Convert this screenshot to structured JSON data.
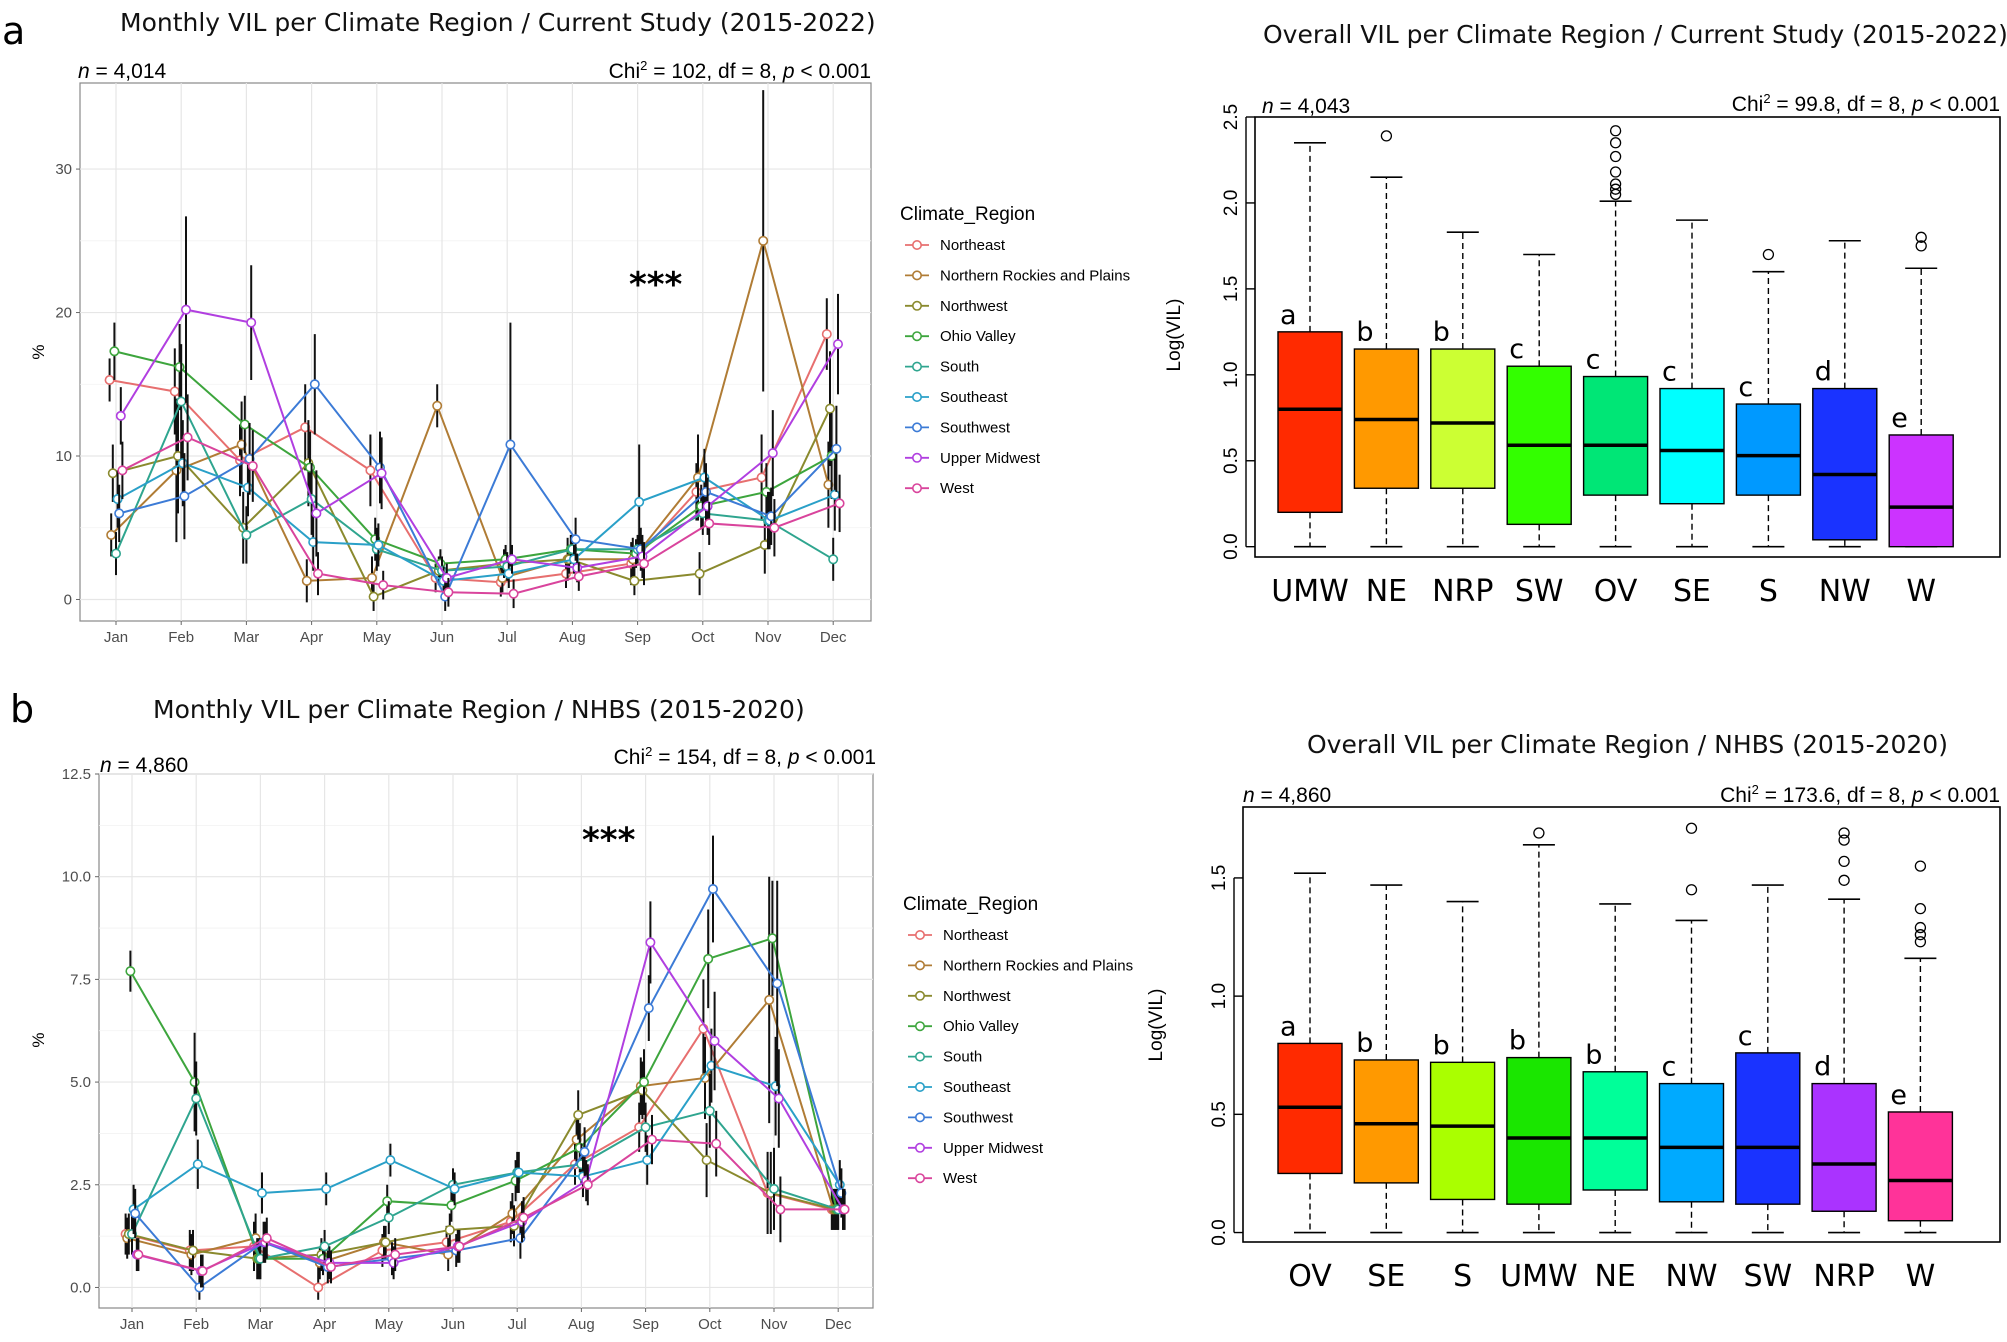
{
  "panel_labels": [
    "a",
    "b"
  ],
  "chart_data": [
    {
      "id": "a-line",
      "type": "line",
      "title": "Monthly VIL per Climate Region / Current Study (2015-2022)",
      "n_prefix": "n",
      "n_value": " = 4,014",
      "stat_prefix": "Chi",
      "stat_sup": "2",
      "stat_mid": " = 102, df = 8, ",
      "stat_p": "p",
      "stat_suffix": " < 0.001",
      "ylabel": "%",
      "ylim": [
        -1.5,
        36
      ],
      "yticks": [
        0,
        10,
        20,
        30
      ],
      "ytick_labels": [
        "0",
        "10",
        "20",
        "30"
      ],
      "categories": [
        "Jan",
        "Feb",
        "Mar",
        "Apr",
        "May",
        "Jun",
        "Jul",
        "Aug",
        "Sep",
        "Oct",
        "Nov",
        "Dec"
      ],
      "legend_title": "Climate_Region",
      "annotation": "***",
      "annotation_at": {
        "month": 9.4,
        "value": 22
      },
      "series": [
        {
          "name": "Northeast",
          "color": "#E76F6F",
          "values": [
            15.3,
            14.5,
            9.7,
            12.0,
            9.0,
            1.5,
            1.2,
            1.8,
            2.5,
            7.5,
            8.5,
            18.5
          ],
          "err": [
            1.5,
            3,
            2.5,
            3,
            2.5,
            1,
            1,
            1,
            1.5,
            2,
            3,
            2.5
          ]
        },
        {
          "name": "Northern Rockies and Plains",
          "color": "#B07C35",
          "values": [
            4.5,
            9.0,
            10.8,
            1.3,
            1.5,
            13.5,
            1.5,
            2.8,
            2.8,
            8.5,
            25.0,
            8.0
          ],
          "err": [
            1.5,
            5,
            3,
            1.5,
            1.5,
            1.5,
            1,
            1.5,
            1.5,
            3,
            10.5,
            3
          ]
        },
        {
          "name": "Northwest",
          "color": "#8A8A2E",
          "values": [
            8.8,
            10.0,
            5.0,
            9.5,
            0.2,
            2.0,
            2.5,
            2.8,
            1.3,
            1.8,
            3.8,
            13.3
          ],
          "err": [
            2,
            4,
            2.5,
            3,
            1,
            1,
            1,
            1,
            1,
            1.5,
            2,
            4
          ]
        },
        {
          "name": "Ohio Valley",
          "color": "#3DA53D",
          "values": [
            17.3,
            16.2,
            12.2,
            9.2,
            4.2,
            2.5,
            2.8,
            3.5,
            3.2,
            6.5,
            7.5,
            10.0
          ],
          "err": [
            2,
            3,
            2,
            2.5,
            1.5,
            1,
            1,
            1,
            1,
            1.5,
            2,
            3
          ]
        },
        {
          "name": "South",
          "color": "#2FA58F",
          "values": [
            3.2,
            13.8,
            4.5,
            7.0,
            3.5,
            2.0,
            2.3,
            3.5,
            3.5,
            6.0,
            5.5,
            2.8
          ],
          "err": [
            1.5,
            4,
            2,
            2.5,
            1.5,
            1,
            1,
            1,
            1,
            1.5,
            2,
            1.5
          ]
        },
        {
          "name": "Southeast",
          "color": "#2AA0C8",
          "values": [
            7.0,
            9.5,
            7.8,
            4.0,
            3.8,
            1.3,
            1.8,
            2.8,
            6.8,
            8.5,
            5.5,
            7.3
          ],
          "err": [
            2,
            3,
            2,
            2,
            1.5,
            1,
            1,
            1,
            4,
            2,
            2,
            2.5
          ]
        },
        {
          "name": "Southwest",
          "color": "#3C7BD6",
          "values": [
            6.0,
            7.2,
            9.8,
            15.0,
            9.2,
            0.2,
            10.8,
            4.2,
            3.5,
            7.5,
            5.8,
            10.5
          ],
          "err": [
            2,
            3,
            2.5,
            3.5,
            2.5,
            1,
            8.5,
            1.5,
            1.5,
            2,
            2,
            3
          ]
        },
        {
          "name": "Upper Midwest",
          "color": "#B13FE0",
          "values": [
            12.8,
            20.2,
            19.3,
            6.0,
            8.8,
            1.5,
            2.8,
            2.2,
            3.0,
            6.5,
            10.2,
            17.8
          ],
          "err": [
            2,
            6.5,
            4,
            3,
            2.5,
            1,
            1,
            1,
            1.5,
            2,
            3,
            3.5
          ]
        },
        {
          "name": "West",
          "color": "#D9449C",
          "values": [
            9.0,
            11.3,
            9.3,
            1.8,
            1.0,
            0.5,
            0.4,
            1.6,
            2.5,
            5.3,
            5.0,
            6.7
          ],
          "err": [
            2,
            3,
            2.5,
            1.5,
            1,
            1,
            1,
            1,
            1.5,
            1.5,
            2,
            2
          ]
        }
      ]
    },
    {
      "id": "a-box",
      "type": "box",
      "title": "Overall VIL per Climate Region / Current Study (2015-2022)",
      "n_prefix": "n",
      "n_value": " = 4,043",
      "stat_prefix": "Chi",
      "stat_sup": "2",
      "stat_mid": " = 99.8, df = 8, ",
      "stat_p": "p",
      "stat_suffix": " < 0.001",
      "ylabel": "Log(VIL)",
      "ylim": [
        -0.06,
        2.5
      ],
      "yticks": [
        0.0,
        0.5,
        1.0,
        1.5,
        2.0,
        2.5
      ],
      "ytick_labels": [
        "0.0",
        "0.5",
        "1.0",
        "1.5",
        "2.0",
        "2.5"
      ],
      "boxes": [
        {
          "label": "UMW",
          "color": "#FF2A00",
          "q1": 0.2,
          "median": 0.8,
          "q3": 1.25,
          "whisker_low": 0.0,
          "whisker_high": 2.35,
          "outliers": [],
          "letter": "a"
        },
        {
          "label": "NE",
          "color": "#FF9900",
          "q1": 0.34,
          "median": 0.74,
          "q3": 1.15,
          "whisker_low": 0.0,
          "whisker_high": 2.15,
          "outliers": [
            2.39
          ],
          "letter": "b"
        },
        {
          "label": "NRP",
          "color": "#CCFF33",
          "q1": 0.34,
          "median": 0.72,
          "q3": 1.15,
          "whisker_low": 0.0,
          "whisker_high": 1.83,
          "outliers": [],
          "letter": "b"
        },
        {
          "label": "SW",
          "color": "#33FF00",
          "q1": 0.13,
          "median": 0.59,
          "q3": 1.05,
          "whisker_low": 0.0,
          "whisker_high": 1.7,
          "outliers": [],
          "letter": "c"
        },
        {
          "label": "OV",
          "color": "#00E676",
          "q1": 0.3,
          "median": 0.59,
          "q3": 0.99,
          "whisker_low": 0.0,
          "whisker_high": 2.01,
          "outliers": [
            2.05,
            2.08,
            2.11,
            2.18,
            2.27,
            2.35,
            2.42
          ],
          "letter": "c"
        },
        {
          "label": "SE",
          "color": "#00FFFF",
          "q1": 0.25,
          "median": 0.56,
          "q3": 0.92,
          "whisker_low": 0.0,
          "whisker_high": 1.9,
          "outliers": [],
          "letter": "c"
        },
        {
          "label": "S",
          "color": "#0099FF",
          "q1": 0.3,
          "median": 0.53,
          "q3": 0.83,
          "whisker_low": 0.0,
          "whisker_high": 1.6,
          "outliers": [
            1.7
          ],
          "letter": "c"
        },
        {
          "label": "NW",
          "color": "#1A33FF",
          "q1": 0.04,
          "median": 0.42,
          "q3": 0.92,
          "whisker_low": 0.0,
          "whisker_high": 1.78,
          "outliers": [],
          "letter": "d"
        },
        {
          "label": "W",
          "color": "#CC33FF",
          "q1": 0.0,
          "median": 0.23,
          "q3": 0.65,
          "whisker_low": 0.0,
          "whisker_high": 1.62,
          "outliers": [
            1.75,
            1.8
          ],
          "letter": "e"
        }
      ]
    },
    {
      "id": "b-line",
      "type": "line",
      "title": "Monthly VIL per Climate Region / NHBS (2015-2020)",
      "n_prefix": "n",
      "n_value": " = 4,860",
      "stat_prefix": "Chi",
      "stat_sup": "2",
      "stat_mid": " = 154, df = 8, ",
      "stat_p": "p",
      "stat_suffix": " < 0.001",
      "ylabel": "%",
      "ylim": [
        -0.5,
        12.5
      ],
      "yticks": [
        0.0,
        2.5,
        5.0,
        7.5,
        10.0,
        12.5
      ],
      "ytick_labels": [
        "0.0",
        "2.5",
        "5.0",
        "7.5",
        "10.0",
        "12.5"
      ],
      "categories": [
        "Jan",
        "Feb",
        "Mar",
        "Apr",
        "May",
        "Jun",
        "Jul",
        "Aug",
        "Sep",
        "Oct",
        "Nov",
        "Dec"
      ],
      "legend_title": "Climate_Region",
      "annotation": "***",
      "annotation_at": {
        "month": 8.55,
        "value": 10.9
      },
      "series": [
        {
          "name": "Northeast",
          "color": "#E76F6F",
          "values": [
            1.3,
            0.9,
            1.0,
            0.0,
            0.9,
            1.1,
            1.6,
            3.0,
            3.9,
            6.3,
            2.3,
            1.9
          ],
          "err": [
            0.5,
            0.5,
            0.6,
            0.5,
            0.4,
            0.4,
            0.5,
            0.5,
            0.6,
            1.2,
            1.0,
            0.5
          ]
        },
        {
          "name": "Northern Rockies and Plains",
          "color": "#B07C35",
          "values": [
            1.2,
            0.8,
            1.2,
            0.6,
            1.1,
            0.8,
            1.8,
            3.6,
            4.9,
            5.1,
            7.0,
            1.9
          ],
          "err": [
            0.5,
            0.5,
            0.6,
            0.4,
            0.4,
            0.4,
            0.5,
            0.6,
            0.7,
            1.0,
            3.0,
            0.5
          ]
        },
        {
          "name": "Northwest",
          "color": "#8A8A2E",
          "values": [
            1.3,
            0.9,
            0.7,
            0.8,
            1.1,
            1.4,
            1.5,
            4.2,
            4.8,
            3.1,
            2.3,
            1.9
          ],
          "err": [
            0.5,
            0.5,
            0.5,
            0.4,
            0.4,
            0.4,
            0.5,
            0.6,
            0.7,
            0.9,
            1.0,
            0.5
          ]
        },
        {
          "name": "Ohio Valley",
          "color": "#3DA53D",
          "values": [
            7.7,
            5.0,
            0.7,
            0.7,
            2.1,
            2.0,
            2.6,
            3.4,
            5.0,
            8.0,
            8.5,
            1.9
          ],
          "err": [
            0.5,
            1.2,
            0.5,
            0.4,
            0.4,
            0.4,
            0.5,
            0.6,
            0.8,
            1.2,
            1.4,
            0.5
          ]
        },
        {
          "name": "South",
          "color": "#2FA58F",
          "values": [
            1.3,
            4.6,
            0.7,
            1.0,
            1.7,
            2.5,
            2.8,
            3.0,
            3.9,
            4.3,
            2.4,
            1.9
          ],
          "err": [
            0.5,
            0.9,
            0.5,
            0.4,
            0.4,
            0.4,
            0.5,
            0.5,
            0.6,
            0.9,
            1.0,
            0.5
          ]
        },
        {
          "name": "Southeast",
          "color": "#2AA0C8",
          "values": [
            1.9,
            3.0,
            2.3,
            2.4,
            3.1,
            2.4,
            2.8,
            2.7,
            3.1,
            5.4,
            4.9,
            2.5
          ],
          "err": [
            0.6,
            0.6,
            0.5,
            0.4,
            0.4,
            0.4,
            0.5,
            0.5,
            0.6,
            0.9,
            1.2,
            0.6
          ]
        },
        {
          "name": "Southwest",
          "color": "#3C7BD6",
          "values": [
            1.8,
            0.0,
            1.1,
            0.5,
            0.7,
            0.9,
            1.2,
            3.3,
            6.8,
            9.7,
            7.4,
            2.3
          ],
          "err": [
            0.6,
            0.5,
            0.5,
            0.4,
            0.4,
            0.4,
            0.5,
            0.6,
            0.8,
            1.3,
            2.5,
            0.6
          ]
        },
        {
          "name": "Upper Midwest",
          "color": "#B13FE0",
          "values": [
            0.8,
            0.4,
            1.1,
            0.6,
            0.6,
            1.0,
            1.6,
            2.6,
            8.4,
            6.0,
            4.6,
            1.9
          ],
          "err": [
            0.4,
            0.4,
            0.5,
            0.4,
            0.4,
            0.4,
            0.5,
            0.5,
            1.0,
            1.2,
            1.2,
            0.5
          ]
        },
        {
          "name": "West",
          "color": "#D9449C",
          "values": [
            0.8,
            0.4,
            1.2,
            0.5,
            0.8,
            1.0,
            1.7,
            2.5,
            3.6,
            3.5,
            1.9,
            1.9
          ],
          "err": [
            0.4,
            0.4,
            0.5,
            0.4,
            0.4,
            0.4,
            0.5,
            0.5,
            0.6,
            0.8,
            0.8,
            0.5
          ]
        }
      ]
    },
    {
      "id": "b-box",
      "type": "box",
      "title": "Overall VIL per Climate Region / NHBS (2015-2020)",
      "n_prefix": "n",
      "n_value": " = 4,860",
      "stat_prefix": "Chi",
      "stat_sup": "2",
      "stat_mid": " = 173.6, df = 8, ",
      "stat_p": "p",
      "stat_suffix": " < 0.001",
      "ylabel": "Log(VIL)",
      "ylim": [
        -0.04,
        1.8
      ],
      "yticks": [
        0.0,
        0.5,
        1.0,
        1.5
      ],
      "ytick_labels": [
        "0.0",
        "0.5",
        "1.0",
        "1.5"
      ],
      "boxes": [
        {
          "label": "OV",
          "color": "#FF2A00",
          "q1": 0.25,
          "median": 0.53,
          "q3": 0.8,
          "whisker_low": 0.0,
          "whisker_high": 1.52,
          "outliers": [],
          "letter": "a"
        },
        {
          "label": "SE",
          "color": "#FF9900",
          "q1": 0.21,
          "median": 0.46,
          "q3": 0.73,
          "whisker_low": 0.0,
          "whisker_high": 1.47,
          "outliers": [],
          "letter": "b"
        },
        {
          "label": "S",
          "color": "#AAFF00",
          "q1": 0.14,
          "median": 0.45,
          "q3": 0.72,
          "whisker_low": 0.0,
          "whisker_high": 1.4,
          "outliers": [],
          "letter": "b"
        },
        {
          "label": "UMW",
          "color": "#1AE600",
          "q1": 0.12,
          "median": 0.4,
          "q3": 0.74,
          "whisker_low": 0.0,
          "whisker_high": 1.64,
          "outliers": [
            1.69
          ],
          "letter": "b"
        },
        {
          "label": "NE",
          "color": "#00FF99",
          "q1": 0.18,
          "median": 0.4,
          "q3": 0.68,
          "whisker_low": 0.0,
          "whisker_high": 1.39,
          "outliers": [],
          "letter": "b"
        },
        {
          "label": "NW",
          "color": "#00AAFF",
          "q1": 0.13,
          "median": 0.36,
          "q3": 0.63,
          "whisker_low": 0.0,
          "whisker_high": 1.32,
          "outliers": [
            1.45,
            1.71
          ],
          "letter": "c"
        },
        {
          "label": "SW",
          "color": "#1A33FF",
          "q1": 0.12,
          "median": 0.36,
          "q3": 0.76,
          "whisker_low": 0.0,
          "whisker_high": 1.47,
          "outliers": [],
          "letter": "c"
        },
        {
          "label": "NRP",
          "color": "#AA33FF",
          "q1": 0.09,
          "median": 0.29,
          "q3": 0.63,
          "whisker_low": 0.0,
          "whisker_high": 1.41,
          "outliers": [
            1.49,
            1.57,
            1.66,
            1.69
          ],
          "letter": "d"
        },
        {
          "label": "W",
          "color": "#FF3399",
          "q1": 0.05,
          "median": 0.22,
          "q3": 0.51,
          "whisker_low": 0.0,
          "whisker_high": 1.16,
          "outliers": [
            1.23,
            1.26,
            1.29,
            1.37,
            1.55
          ],
          "letter": "e"
        }
      ]
    }
  ]
}
